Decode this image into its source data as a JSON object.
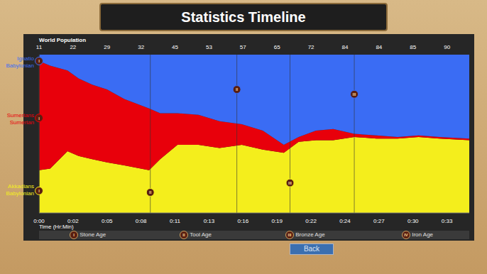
{
  "title": "Statistics Timeline",
  "back_button": "Back",
  "chart_data": {
    "type": "area",
    "stacked": true,
    "grid": false,
    "tick_labels": "x",
    "top_axis_label": "World Population",
    "world_population": [
      11,
      22,
      29,
      32,
      45,
      53,
      57,
      65,
      72,
      84,
      84,
      85,
      90
    ],
    "x_label": "Time (Hr:Min)",
    "x": [
      0,
      0.9,
      2.3,
      3.2,
      4.3,
      5.5,
      6.9,
      8.9,
      9.8,
      11.2,
      12.9,
      14.6,
      16.4,
      18.1,
      19.8,
      21.0,
      22.4,
      23.8,
      25.5,
      27.3,
      29.0,
      30.7,
      32.4,
      34.8
    ],
    "xlim": [
      0,
      34.8
    ],
    "xticks": [
      {
        "value": 0,
        "label": "0:00"
      },
      {
        "value": 2.75,
        "label": "0:02"
      },
      {
        "value": 5.5,
        "label": "0:05"
      },
      {
        "value": 8.25,
        "label": "0:08"
      },
      {
        "value": 11,
        "label": "0:11"
      },
      {
        "value": 13.75,
        "label": "0:13"
      },
      {
        "value": 16.5,
        "label": "0:16"
      },
      {
        "value": 19.25,
        "label": "0:19"
      },
      {
        "value": 22,
        "label": "0:22"
      },
      {
        "value": 24.75,
        "label": "0:24"
      },
      {
        "value": 27.5,
        "label": "0:27"
      },
      {
        "value": 30.25,
        "label": "0:30"
      },
      {
        "value": 33,
        "label": "0:33"
      }
    ],
    "ylim": [
      0,
      100
    ],
    "yticks": [],
    "series": [
      {
        "name": "Akkadians",
        "civilization": "Babylonian",
        "color": "#f4ee1c",
        "values": [
          27,
          28,
          39,
          36,
          34,
          32,
          30,
          27,
          34,
          43,
          43,
          41,
          43,
          40,
          38,
          45,
          46,
          46,
          48,
          47,
          47,
          48,
          47,
          46
        ]
      },
      {
        "name": "Sumerians",
        "civilization": "Sumerian",
        "color": "#e8000b",
        "values": [
          69,
          65,
          51,
          49,
          47,
          46,
          42,
          39,
          29,
          20,
          19,
          17,
          13,
          12,
          5,
          3,
          6,
          7,
          2,
          2,
          1,
          1,
          1,
          1
        ]
      },
      {
        "name": "Ignatio",
        "civilization": "Babylonian",
        "color": "#3a6cf4",
        "values": [
          4,
          7,
          10,
          15,
          19,
          22,
          28,
          34,
          37,
          37,
          38,
          42,
          44,
          48,
          57,
          52,
          48,
          47,
          50,
          51,
          52,
          51,
          52,
          53
        ]
      }
    ],
    "age_markers": [
      {
        "series": "Ignatio",
        "label": "I",
        "x": 0,
        "y": 96
      },
      {
        "series": "Sumerians",
        "label": "I",
        "x": 0,
        "y": 60
      },
      {
        "series": "Akkadians",
        "label": "I",
        "x": 0,
        "y": 14
      },
      {
        "series": "Akkadians",
        "label": "II",
        "x": 9.0,
        "y": 13
      },
      {
        "series": "Ignatio",
        "label": "II",
        "x": 16.0,
        "y": 78
      },
      {
        "series": "Akkadians",
        "label": "III",
        "x": 20.3,
        "y": 19
      },
      {
        "series": "Ignatio",
        "label": "III",
        "x": 25.5,
        "y": 75
      }
    ],
    "ages": [
      {
        "label": "I",
        "name": "Stone Age"
      },
      {
        "label": "II",
        "name": "Tool Age"
      },
      {
        "label": "III",
        "name": "Bronze Age"
      },
      {
        "label": "IV",
        "name": "Iron Age"
      }
    ]
  }
}
